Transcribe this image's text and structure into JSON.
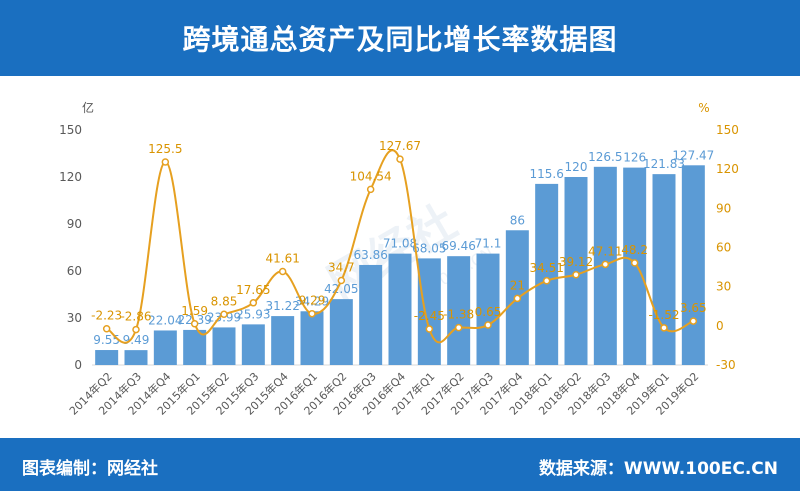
{
  "header": {
    "title": "跨境通总资产及同比增长率数据图"
  },
  "footer": {
    "source_left": "图表编制：网经社",
    "source_right": "数据来源：WWW.100EC.CN"
  },
  "watermark": {
    "text": "网经社",
    "url": "100EC.CN"
  },
  "colors": {
    "header_bg": "#1a6fc0",
    "bar": "#5b9bd5",
    "line": "#e6a020",
    "axis_text": "#595959",
    "bar_label": "#5b9bd5",
    "line_label": "#d99400"
  },
  "chart_data": {
    "type": "bar",
    "categories": [
      "2014年Q2",
      "2014年Q3",
      "2014年Q4",
      "2015年Q1",
      "2015年Q2",
      "2015年Q3",
      "2015年Q4",
      "2016年Q1",
      "2016年Q2",
      "2016年Q3",
      "2016年Q4",
      "2017年Q1",
      "2017年Q2",
      "2017年Q3",
      "2017年Q4",
      "2018年Q1",
      "2018年Q2",
      "2018年Q3",
      "2018年Q4",
      "2019年Q1",
      "2019年Q2"
    ],
    "series": [
      {
        "values": [
          9.55,
          9.49,
          22.04,
          22.39,
          23.99,
          25.93,
          31.22,
          34.29,
          42.05,
          63.86,
          71.08,
          68.05,
          69.46,
          71.1,
          86,
          115.6,
          120,
          126.5,
          126,
          121.83,
          127.47
        ],
        "labels": [
          "9.55",
          "9.49",
          "22.04",
          "22.39",
          "23.99",
          "25.93",
          "31.22",
          "34.29",
          "42.05",
          "63.86",
          "71.08",
          "68.05",
          "69.46",
          "71.1",
          "86",
          "115.6",
          "120",
          "126.5",
          "126",
          "121.83",
          "127.47"
        ]
      },
      {
        "values": [
          -2.23,
          -2.86,
          125.5,
          1.59,
          8.85,
          17.65,
          41.61,
          9.29,
          34.7,
          104.54,
          127.67,
          -2.45,
          -1.38,
          0.65,
          21,
          34.51,
          39.12,
          47.11,
          48.2,
          -1.52,
          3.65
        ],
        "labels": [
          "-2.23",
          "-2.86",
          "125.5",
          "1.59",
          "8.85",
          "17.65",
          "41.61",
          "9.29",
          "34.7",
          "104.54",
          "127.67",
          "-2.45",
          "-1.38",
          "0.65",
          "21",
          "34.51",
          "39.12",
          "47.11",
          "48.2",
          "-1.52",
          "3.65"
        ]
      }
    ],
    "left_axis": {
      "unit": "亿",
      "ylim": [
        0,
        150
      ],
      "ticks": [
        "0",
        "30",
        "60",
        "90",
        "120",
        "150"
      ]
    },
    "right_axis": {
      "unit": "%",
      "ylim": [
        -30,
        150
      ],
      "ticks": [
        "-30",
        "0",
        "30",
        "60",
        "90",
        "120",
        "150"
      ]
    },
    "grid": false
  }
}
